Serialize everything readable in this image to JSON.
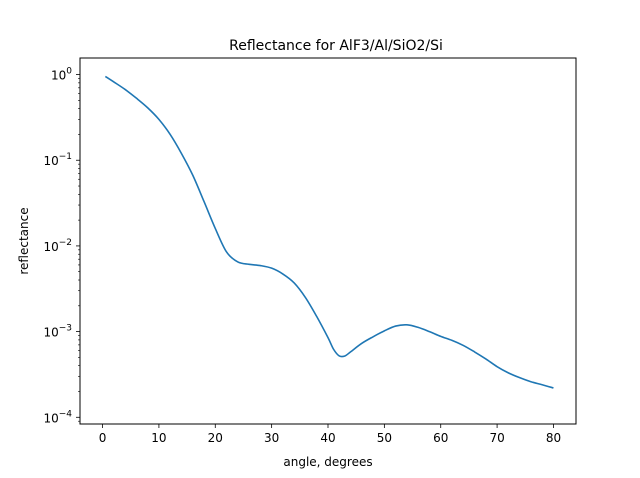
{
  "chart_data": {
    "type": "line",
    "title": "Reflectance for AlF3/Al/SiO2/Si",
    "xlabel": "angle, degrees",
    "ylabel": "reflectance",
    "xscale": "linear",
    "yscale": "log",
    "xlim": [
      -4,
      84
    ],
    "ylim": [
      8.35e-05,
      1.56
    ],
    "grid": false,
    "legend": "none",
    "x_ticks": [
      0,
      10,
      20,
      30,
      40,
      50,
      60,
      70,
      80
    ],
    "x_tick_labels": [
      "0",
      "10",
      "20",
      "30",
      "40",
      "50",
      "60",
      "70",
      "80"
    ],
    "y_ticks": [
      1,
      0.1,
      0.01,
      0.001,
      0.0001
    ],
    "y_tick_labels": [
      {
        "base": "10",
        "exp": "0"
      },
      {
        "base": "10",
        "exp": "−1"
      },
      {
        "base": "10",
        "exp": "−2"
      },
      {
        "base": "10",
        "exp": "−3"
      },
      {
        "base": "10",
        "exp": "−4"
      }
    ],
    "series": [
      {
        "color": "#1f77b4",
        "x": [
          0.5,
          2,
          4,
          6,
          8,
          10,
          12,
          14,
          16,
          18,
          20,
          22,
          24,
          26,
          28,
          30,
          32,
          34,
          36,
          38,
          40,
          41,
          42,
          43,
          44,
          46,
          48,
          50,
          52,
          54,
          56,
          58,
          60,
          62,
          64,
          66,
          68,
          70,
          72,
          74,
          76,
          78,
          80
        ],
        "y": [
          0.95,
          0.82,
          0.67,
          0.53,
          0.41,
          0.3,
          0.2,
          0.12,
          0.067,
          0.033,
          0.016,
          0.0085,
          0.0065,
          0.0061,
          0.0059,
          0.0055,
          0.0047,
          0.0037,
          0.0025,
          0.0015,
          0.00085,
          0.00062,
          0.00052,
          0.00052,
          0.00058,
          0.00073,
          0.00087,
          0.00102,
          0.00116,
          0.0012,
          0.00112,
          0.001,
          0.00088,
          0.00079,
          0.00069,
          0.00058,
          0.00048,
          0.00039,
          0.00033,
          0.00029,
          0.00026,
          0.00024,
          0.00022
        ]
      }
    ]
  }
}
